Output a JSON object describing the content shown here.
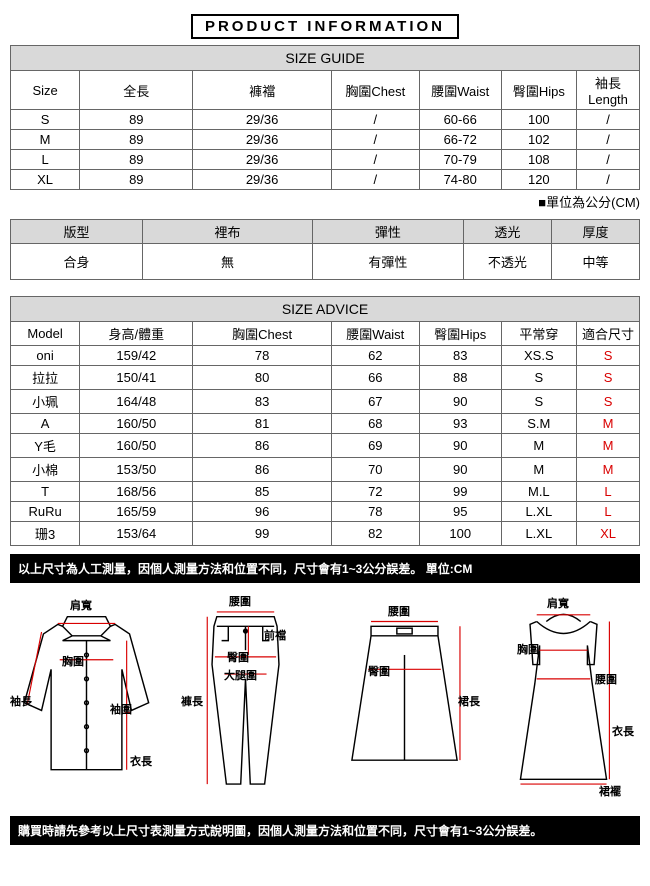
{
  "title": "PRODUCT INFORMATION",
  "sizeGuide": {
    "heading": "SIZE GUIDE",
    "columns": [
      "Size",
      "全長",
      "褲襠",
      "胸圍Chest",
      "腰圍Waist",
      "臀圍Hips",
      "袖長Length"
    ],
    "rows": [
      [
        "S",
        "89",
        "29/36",
        "/",
        "60-66",
        "100",
        "/"
      ],
      [
        "M",
        "89",
        "29/36",
        "/",
        "66-72",
        "102",
        "/"
      ],
      [
        "L",
        "89",
        "29/36",
        "/",
        "70-79",
        "108",
        "/"
      ],
      [
        "XL",
        "89",
        "29/36",
        "/",
        "74-80",
        "120",
        "/"
      ]
    ],
    "widths_pct": [
      11,
      18,
      22,
      14,
      13,
      12,
      15
    ]
  },
  "unitNote": "■單位為公分(CM)",
  "attributes": {
    "headers": [
      "版型",
      "裡布",
      "彈性",
      "透光",
      "厚度"
    ],
    "values": [
      "合身",
      "無",
      "有彈性",
      "不透光",
      "中等"
    ],
    "widths_pct": [
      21,
      27,
      24,
      14,
      14
    ]
  },
  "sizeAdvice": {
    "heading": "SIZE ADVICE",
    "columns": [
      "Model",
      "身高/體重",
      "胸圍Chest",
      "腰圍Waist",
      "臀圍Hips",
      "平常穿",
      "適合尺寸"
    ],
    "rows": [
      [
        "oni",
        "159/42",
        "78",
        "62",
        "83",
        "XS.S",
        "S"
      ],
      [
        "拉拉",
        "150/41",
        "80",
        "66",
        "88",
        "S",
        "S"
      ],
      [
        "小珮",
        "164/48",
        "83",
        "67",
        "90",
        "S",
        "S"
      ],
      [
        "A",
        "160/50",
        "81",
        "68",
        "93",
        "S.M",
        "M"
      ],
      [
        "Y毛",
        "160/50",
        "86",
        "69",
        "90",
        "M",
        "M"
      ],
      [
        "小棉",
        "153/50",
        "86",
        "70",
        "90",
        "M",
        "M"
      ],
      [
        "T",
        "168/56",
        "85",
        "72",
        "99",
        "M.L",
        "L"
      ],
      [
        "RuRu",
        "165/59",
        "96",
        "78",
        "95",
        "L.XL",
        "L"
      ],
      [
        "珊3",
        "153/64",
        "99",
        "82",
        "100",
        "L.XL",
        "XL"
      ]
    ],
    "widths_pct": [
      11,
      18,
      22,
      14,
      13,
      12,
      15
    ]
  },
  "noteTop": "以上尺寸為人工測量，因個人測量方法和位置不同，尺寸會有1~3公分誤差。 單位:CM",
  "noteBottom": "購買時請先參考以上尺寸表測量方式說明圖，因個人測量方法和位置不同，尺寸會有1~3公分誤差。",
  "colors": {
    "accentRed": "#d90000",
    "diagramRed": "#d90000",
    "headerGrey": "#d9d9d9",
    "border": "#666666"
  },
  "diagramLabels": {
    "shirt": {
      "shoulder": "肩寬",
      "chest": "胸圍",
      "sleeve": "袖長",
      "cuff": "袖圍",
      "length": "衣長"
    },
    "pants": {
      "waist": "腰圍",
      "front": "前襠",
      "hips": "臀圍",
      "thigh": "大腿圍",
      "length": "褲長"
    },
    "skirt": {
      "waist": "腰圍",
      "hips": "臀圍",
      "length": "裙長"
    },
    "dress": {
      "shoulder": "肩寬",
      "chest": "胸圍",
      "waist": "腰圍",
      "length": "衣長",
      "skirt": "裙襬"
    }
  }
}
